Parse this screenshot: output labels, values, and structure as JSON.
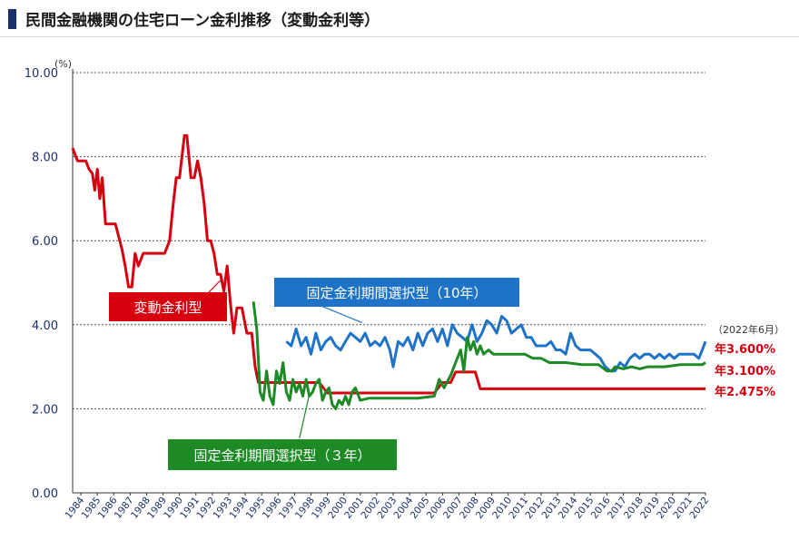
{
  "title": "民間金融機関の住宅ローン金利推移（変動金利等）",
  "colors": {
    "variable": "#d7000f",
    "fixed10": "#1e73c6",
    "fixed3": "#1d8a26",
    "axis": "#1b2f6b",
    "grid": "#555555"
  },
  "chart_data": {
    "type": "line",
    "title": "民間金融機関の住宅ローン金利推移（変動金利等）",
    "ylabel": "(%)",
    "xlabel": "",
    "ylim": [
      0,
      10
    ],
    "xlim": [
      1984,
      2022.5
    ],
    "grid": true,
    "y_ticks": [
      "0.00",
      "2.00",
      "4.00",
      "6.00",
      "8.00",
      "10.00"
    ],
    "x_ticks": [
      "1984",
      "1985",
      "1986",
      "1987",
      "1988",
      "1989",
      "1990",
      "1991",
      "1992",
      "1993",
      "1994",
      "1995",
      "1996",
      "1997",
      "1998",
      "1999",
      "2000",
      "2001",
      "2002",
      "2003",
      "2004",
      "2005",
      "2006",
      "2007",
      "2008",
      "2009",
      "2010",
      "2011",
      "2012",
      "2013",
      "2014",
      "2015",
      "2016",
      "2017",
      "2018",
      "2019",
      "2020",
      "2021",
      "2022"
    ],
    "series": [
      {
        "name": "変動金利型",
        "color": "#d7000f",
        "x": [
          1984.0,
          1984.3,
          1984.8,
          1985.0,
          1985.2,
          1985.35,
          1985.5,
          1985.65,
          1985.8,
          1986.0,
          1986.2,
          1986.4,
          1986.6,
          1987.0,
          1987.2,
          1987.4,
          1987.6,
          1987.8,
          1988.0,
          1988.3,
          1988.6,
          1989.0,
          1989.3,
          1989.6,
          1989.9,
          1990.1,
          1990.3,
          1990.5,
          1990.8,
          1990.95,
          1991.2,
          1991.4,
          1991.6,
          1991.8,
          1992.0,
          1992.2,
          1992.4,
          1992.6,
          1992.8,
          1993.0,
          1993.2,
          1993.4,
          1993.6,
          1993.8,
          1994.0,
          1994.3,
          1994.6,
          1994.9,
          1995.1,
          1995.3,
          1995.5,
          1995.7,
          1996.0,
          1997.0,
          1998.0,
          1999.0,
          1999.5,
          2000.0,
          2000.6,
          2001.0,
          2002.0,
          2003.0,
          2004.0,
          2005.0,
          2006.0,
          2006.5,
          2007.0,
          2007.3,
          2008.0,
          2008.5,
          2008.8,
          2009.0,
          2010.0,
          2012.0,
          2015.0,
          2018.0,
          2021.0,
          2022.5
        ],
        "values": [
          8.2,
          7.9,
          7.9,
          7.7,
          7.6,
          7.2,
          7.7,
          7.0,
          7.5,
          6.4,
          6.4,
          6.4,
          6.4,
          5.8,
          5.4,
          4.9,
          4.9,
          5.7,
          5.4,
          5.7,
          5.7,
          5.7,
          5.7,
          5.7,
          6.0,
          6.8,
          7.5,
          7.5,
          8.5,
          8.5,
          7.5,
          7.5,
          7.9,
          7.5,
          6.9,
          6.0,
          6.0,
          5.7,
          5.2,
          5.2,
          4.8,
          5.4,
          4.5,
          3.8,
          4.4,
          4.4,
          3.8,
          3.8,
          3.0,
          2.625,
          2.625,
          2.625,
          2.625,
          2.625,
          2.625,
          2.625,
          2.375,
          2.375,
          2.375,
          2.375,
          2.375,
          2.375,
          2.375,
          2.375,
          2.375,
          2.625,
          2.625,
          2.875,
          2.875,
          2.875,
          2.475,
          2.475,
          2.475,
          2.475,
          2.475,
          2.475,
          2.475,
          2.475
        ]
      },
      {
        "name": "固定金利期間選択型（10年）",
        "color": "#1e73c6",
        "x": [
          1997.0,
          1997.3,
          1997.6,
          1997.9,
          1998.2,
          1998.5,
          1998.8,
          1999.1,
          1999.4,
          1999.7,
          2000.0,
          2000.3,
          2000.6,
          2000.9,
          2001.2,
          2001.5,
          2001.8,
          2002.1,
          2002.4,
          2002.7,
          2003.0,
          2003.3,
          2003.5,
          2003.8,
          2004.1,
          2004.4,
          2004.7,
          2005.0,
          2005.3,
          2005.6,
          2005.9,
          2006.2,
          2006.5,
          2006.8,
          2007.1,
          2007.4,
          2007.7,
          2008.0,
          2008.3,
          2008.6,
          2008.9,
          2009.2,
          2009.5,
          2009.8,
          2010.1,
          2010.4,
          2010.7,
          2011.0,
          2011.3,
          2011.6,
          2011.9,
          2012.2,
          2012.5,
          2012.8,
          2013.1,
          2013.4,
          2013.7,
          2014.0,
          2014.3,
          2014.6,
          2014.9,
          2015.2,
          2015.5,
          2015.8,
          2016.1,
          2016.4,
          2016.7,
          2017.0,
          2017.3,
          2017.6,
          2017.9,
          2018.2,
          2018.5,
          2018.8,
          2019.1,
          2019.4,
          2019.7,
          2020.0,
          2020.3,
          2020.6,
          2020.9,
          2021.2,
          2021.5,
          2021.8,
          2022.1,
          2022.5
        ],
        "values": [
          3.6,
          3.5,
          3.9,
          3.5,
          3.7,
          3.3,
          3.8,
          3.4,
          3.6,
          3.7,
          3.5,
          3.4,
          3.6,
          3.8,
          3.7,
          3.6,
          3.8,
          3.5,
          3.6,
          3.5,
          3.7,
          3.4,
          3.0,
          3.6,
          3.5,
          3.7,
          3.4,
          3.8,
          3.5,
          3.8,
          3.9,
          3.6,
          3.9,
          3.5,
          4.0,
          3.8,
          3.7,
          3.6,
          4.0,
          3.6,
          3.8,
          4.1,
          4.0,
          3.8,
          4.2,
          4.1,
          3.8,
          3.9,
          4.0,
          3.7,
          3.7,
          3.5,
          3.5,
          3.5,
          3.6,
          3.4,
          3.4,
          3.3,
          3.8,
          3.5,
          3.4,
          3.4,
          3.4,
          3.3,
          3.2,
          3.0,
          2.9,
          2.9,
          3.1,
          3.0,
          3.2,
          3.3,
          3.2,
          3.3,
          3.3,
          3.2,
          3.3,
          3.2,
          3.3,
          3.2,
          3.3,
          3.3,
          3.3,
          3.3,
          3.2,
          3.6
        ]
      },
      {
        "name": "固定金利期間選択型（３年）",
        "color": "#1d8a26",
        "x": [
          1995.0,
          1995.2,
          1995.4,
          1995.6,
          1995.8,
          1996.0,
          1996.2,
          1996.4,
          1996.6,
          1996.8,
          1997.0,
          1997.2,
          1997.4,
          1997.6,
          1997.8,
          1998.0,
          1998.2,
          1998.4,
          1998.6,
          1998.8,
          1999.0,
          1999.2,
          1999.4,
          1999.6,
          1999.8,
          2000.0,
          2000.2,
          2000.4,
          2000.6,
          2000.8,
          2001.0,
          2001.2,
          2001.5,
          2002.0,
          2003.0,
          2004.0,
          2005.0,
          2006.0,
          2006.3,
          2006.6,
          2007.0,
          2007.3,
          2007.6,
          2007.8,
          2008.0,
          2008.2,
          2008.4,
          2008.6,
          2008.8,
          2009.0,
          2009.3,
          2009.6,
          2010.0,
          2010.5,
          2011.0,
          2011.5,
          2012.0,
          2012.5,
          2013.0,
          2013.5,
          2014.0,
          2015.0,
          2016.0,
          2016.5,
          2016.8,
          2017.0,
          2017.5,
          2018.0,
          2018.5,
          2019.0,
          2020.0,
          2021.0,
          2022.0,
          2022.3,
          2022.5
        ],
        "values": [
          4.55,
          3.9,
          2.4,
          2.2,
          2.9,
          2.3,
          2.1,
          2.9,
          2.6,
          3.1,
          2.4,
          2.2,
          2.7,
          2.4,
          2.6,
          2.3,
          2.7,
          2.3,
          2.4,
          2.6,
          2.7,
          2.2,
          2.4,
          2.5,
          2.1,
          2.0,
          2.2,
          2.1,
          2.3,
          2.1,
          2.4,
          2.5,
          2.2,
          2.25,
          2.25,
          2.25,
          2.25,
          2.3,
          2.7,
          2.5,
          2.8,
          3.1,
          3.4,
          2.9,
          3.7,
          3.4,
          3.6,
          3.3,
          3.5,
          3.3,
          3.4,
          3.3,
          3.3,
          3.3,
          3.3,
          3.3,
          3.2,
          3.2,
          3.1,
          3.1,
          3.1,
          3.05,
          3.05,
          2.9,
          2.9,
          3.0,
          2.95,
          3.0,
          2.95,
          3.0,
          3.0,
          3.05,
          3.05,
          3.05,
          3.1
        ]
      }
    ],
    "annotations": {
      "fixed10_label": "固定金利期間選択型（10年）",
      "variable_label": "変動金利型",
      "fixed3_label": "固定金利期間選択型（３年）",
      "date_note": "（2022年6月）",
      "end_fixed10": "年3.600%",
      "end_fixed3": "年3.100%",
      "end_variable": "年2.475%"
    }
  }
}
